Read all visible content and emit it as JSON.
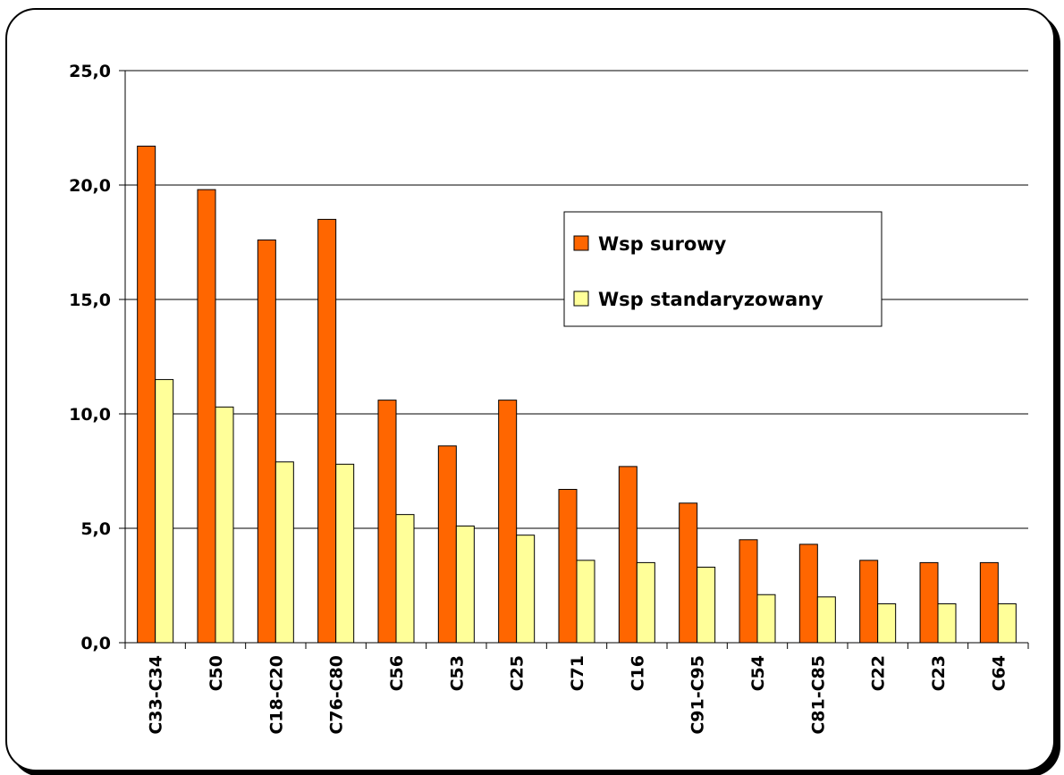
{
  "chart_data": {
    "type": "bar",
    "title": "",
    "xlabel": "",
    "ylabel": "",
    "ylim": [
      0,
      25
    ],
    "y_ticks": [
      "0,0",
      "5,0",
      "10,0",
      "15,0",
      "20,0",
      "25,0"
    ],
    "y_tick_values": [
      0,
      5,
      10,
      15,
      20,
      25
    ],
    "grid": true,
    "legend_position": "center-right",
    "categories": [
      "C33-C34",
      "C50",
      "C18-C20",
      "C76-C80",
      "C56",
      "C53",
      "C25",
      "C71",
      "C16",
      "C91-C95",
      "C54",
      "C81-C85",
      "C22",
      "C23",
      "C64"
    ],
    "series": [
      {
        "name": "Wsp surowy",
        "color": "#ff6600",
        "values": [
          21.7,
          19.8,
          17.6,
          18.5,
          10.6,
          8.6,
          10.6,
          6.7,
          7.7,
          6.1,
          4.5,
          4.3,
          3.6,
          3.5,
          3.5
        ]
      },
      {
        "name": "Wsp standaryzowany",
        "color": "#ffff99",
        "values": [
          11.5,
          10.3,
          7.9,
          7.8,
          5.6,
          5.1,
          4.7,
          3.6,
          3.5,
          3.3,
          2.1,
          2.0,
          1.7,
          1.7,
          1.7
        ]
      }
    ]
  }
}
